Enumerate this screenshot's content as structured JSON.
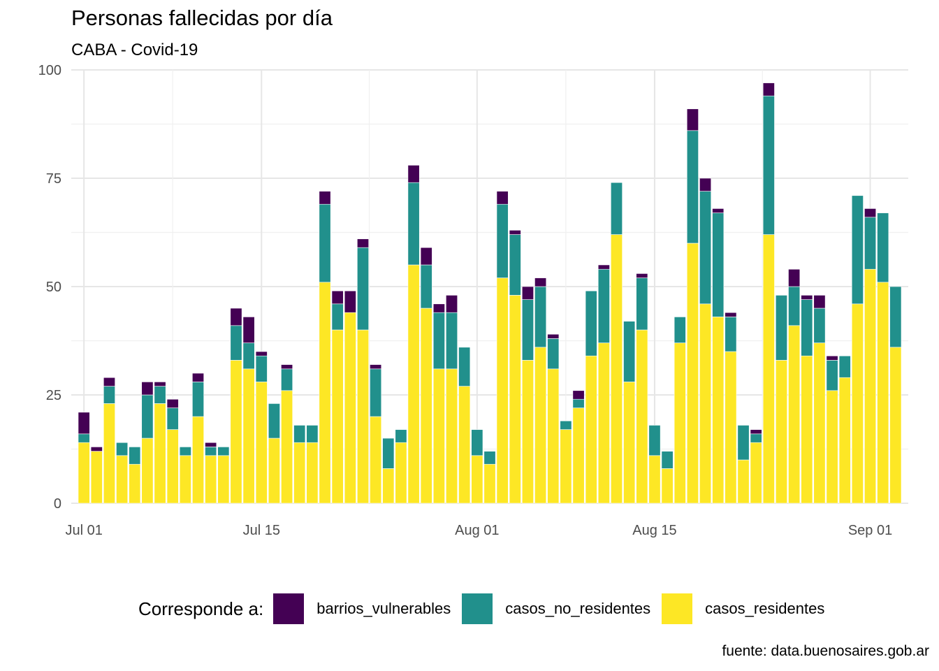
{
  "chart_data": {
    "type": "bar",
    "stacked": true,
    "title": "Personas fallecidas por día",
    "subtitle": "CABA - Covid-19",
    "caption": "fuente: data.buenosaires.gob.ar",
    "xlabel": "",
    "ylabel": "",
    "ylim": [
      0,
      100
    ],
    "yticks": [
      0,
      25,
      50,
      75,
      100
    ],
    "xlim": [
      "2020-06-30",
      "2020-09-04"
    ],
    "xticks": [
      {
        "date": "2020-07-01",
        "label": "Jul 01"
      },
      {
        "date": "2020-07-15",
        "label": "Jul 15"
      },
      {
        "date": "2020-08-01",
        "label": "Aug 01"
      },
      {
        "date": "2020-08-15",
        "label": "Aug 15"
      },
      {
        "date": "2020-09-01",
        "label": "Sep 01"
      }
    ],
    "grid": true,
    "legend_position": "bottom",
    "legend_title": "Corresponde a:",
    "categories": [
      "2020-07-01",
      "2020-07-02",
      "2020-07-03",
      "2020-07-04",
      "2020-07-05",
      "2020-07-06",
      "2020-07-07",
      "2020-07-08",
      "2020-07-09",
      "2020-07-10",
      "2020-07-11",
      "2020-07-12",
      "2020-07-13",
      "2020-07-14",
      "2020-07-15",
      "2020-07-16",
      "2020-07-17",
      "2020-07-18",
      "2020-07-19",
      "2020-07-20",
      "2020-07-21",
      "2020-07-22",
      "2020-07-23",
      "2020-07-24",
      "2020-07-25",
      "2020-07-26",
      "2020-07-27",
      "2020-07-28",
      "2020-07-29",
      "2020-07-30",
      "2020-07-31",
      "2020-08-01",
      "2020-08-02",
      "2020-08-03",
      "2020-08-04",
      "2020-08-05",
      "2020-08-06",
      "2020-08-07",
      "2020-08-08",
      "2020-08-09",
      "2020-08-10",
      "2020-08-11",
      "2020-08-12",
      "2020-08-13",
      "2020-08-14",
      "2020-08-15",
      "2020-08-16",
      "2020-08-17",
      "2020-08-18",
      "2020-08-19",
      "2020-08-20",
      "2020-08-21",
      "2020-08-22",
      "2020-08-23",
      "2020-08-24",
      "2020-08-25",
      "2020-08-26",
      "2020-08-27",
      "2020-08-28",
      "2020-08-29",
      "2020-08-30",
      "2020-08-31",
      "2020-09-01",
      "2020-09-02",
      "2020-09-03"
    ],
    "series": [
      {
        "name": "casos_residentes",
        "color": "#FDE725",
        "values": [
          14,
          12,
          23,
          11,
          9,
          15,
          23,
          17,
          11,
          20,
          11,
          11,
          33,
          31,
          28,
          15,
          26,
          14,
          14,
          51,
          40,
          44,
          40,
          20,
          8,
          14,
          55,
          45,
          31,
          31,
          27,
          11,
          9,
          52,
          48,
          33,
          36,
          31,
          17,
          22,
          34,
          37,
          62,
          28,
          40,
          11,
          8,
          37,
          60,
          46,
          43,
          35,
          10,
          14,
          62,
          33,
          41,
          34,
          37,
          26,
          29,
          46,
          54,
          51,
          36
        ]
      },
      {
        "name": "casos_no_residentes",
        "color": "#21908C",
        "values": [
          2,
          0,
          4,
          3,
          4,
          10,
          4,
          5,
          2,
          8,
          2,
          2,
          8,
          6,
          6,
          8,
          5,
          4,
          4,
          18,
          6,
          0,
          19,
          11,
          7,
          3,
          19,
          10,
          13,
          13,
          9,
          6,
          3,
          17,
          14,
          14,
          14,
          7,
          2,
          2,
          15,
          17,
          12,
          14,
          12,
          7,
          4,
          6,
          26,
          26,
          24,
          8,
          8,
          2,
          32,
          15,
          9,
          13,
          8,
          7,
          5,
          25,
          12,
          16,
          14
        ]
      },
      {
        "name": "barrios_vulnerables",
        "color": "#440154",
        "values": [
          5,
          1,
          2,
          0,
          0,
          3,
          1,
          2,
          0,
          2,
          1,
          0,
          4,
          6,
          1,
          0,
          1,
          0,
          0,
          3,
          3,
          5,
          2,
          1,
          0,
          0,
          4,
          4,
          2,
          4,
          0,
          0,
          0,
          3,
          1,
          3,
          2,
          1,
          0,
          2,
          0,
          1,
          0,
          0,
          1,
          0,
          0,
          0,
          5,
          3,
          1,
          1,
          0,
          1,
          3,
          0,
          4,
          1,
          3,
          1,
          0,
          0,
          2,
          0,
          0
        ]
      }
    ]
  }
}
